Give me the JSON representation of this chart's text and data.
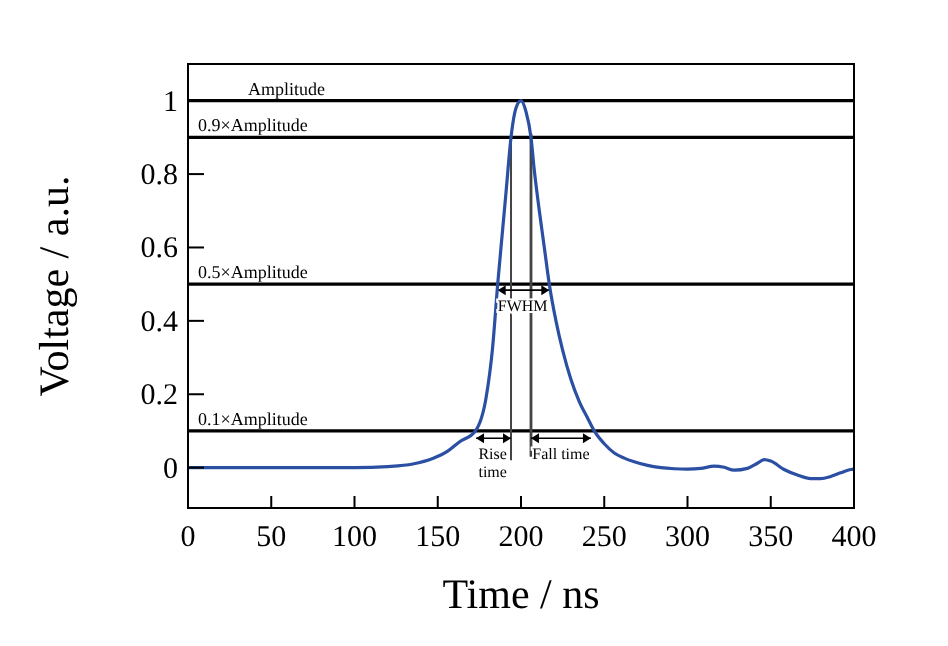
{
  "chart_data": {
    "type": "line",
    "xlabel": "Time / ns",
    "ylabel": "Voltage / a.u.",
    "x": [
      0,
      50,
      100,
      120,
      135,
      147,
      156,
      163,
      172.6,
      179,
      183,
      186,
      189,
      191,
      194,
      197,
      200,
      203,
      206,
      208,
      211,
      214,
      217,
      221,
      225,
      230,
      235,
      240,
      244,
      250,
      256,
      262,
      268,
      276,
      284,
      292,
      300,
      308,
      316,
      322,
      328,
      336,
      342,
      346,
      350,
      358,
      366,
      374,
      380,
      386,
      392,
      398,
      400
    ],
    "series": [
      {
        "color": "#2a4fa3",
        "values": [
          0,
          0,
          0,
          0.003,
          0.01,
          0.025,
          0.045,
          0.07,
          0.1,
          0.19,
          0.33,
          0.5,
          0.65,
          0.75,
          0.9,
          0.98,
          1,
          0.97,
          0.9,
          0.81,
          0.7,
          0.6,
          0.5,
          0.4,
          0.32,
          0.24,
          0.18,
          0.135,
          0.1,
          0.065,
          0.04,
          0.026,
          0.016,
          0.006,
          0,
          -0.003,
          -0.004,
          -0.002,
          0.004,
          0.001,
          -0.007,
          -0.002,
          0.012,
          0.022,
          0.018,
          -0.005,
          -0.02,
          -0.03,
          -0.03,
          -0.024,
          -0.014,
          -0.005,
          -0.004
        ]
      }
    ],
    "xlim": [
      0,
      400
    ],
    "xticks": [
      0,
      50,
      100,
      150,
      200,
      250,
      300,
      350,
      400
    ],
    "ylim": [
      -0.11,
      1.1
    ],
    "yticks": [
      0,
      0.2,
      0.4,
      0.6,
      0.8,
      1
    ],
    "grid": false,
    "marker": "none",
    "line_style": "solid",
    "ref_lines": [
      {
        "axis": "y",
        "value": 1,
        "label": "Amplitude"
      },
      {
        "axis": "y",
        "value": 0.9,
        "label": "0.9×Amplitude"
      },
      {
        "axis": "y",
        "value": 0.5,
        "label": "0.5×Amplitude"
      },
      {
        "axis": "y",
        "value": 0.1,
        "label": "0.1×Amplitude"
      }
    ],
    "annotations": [
      "FWHM",
      "Rise time",
      "Fall time"
    ]
  }
}
